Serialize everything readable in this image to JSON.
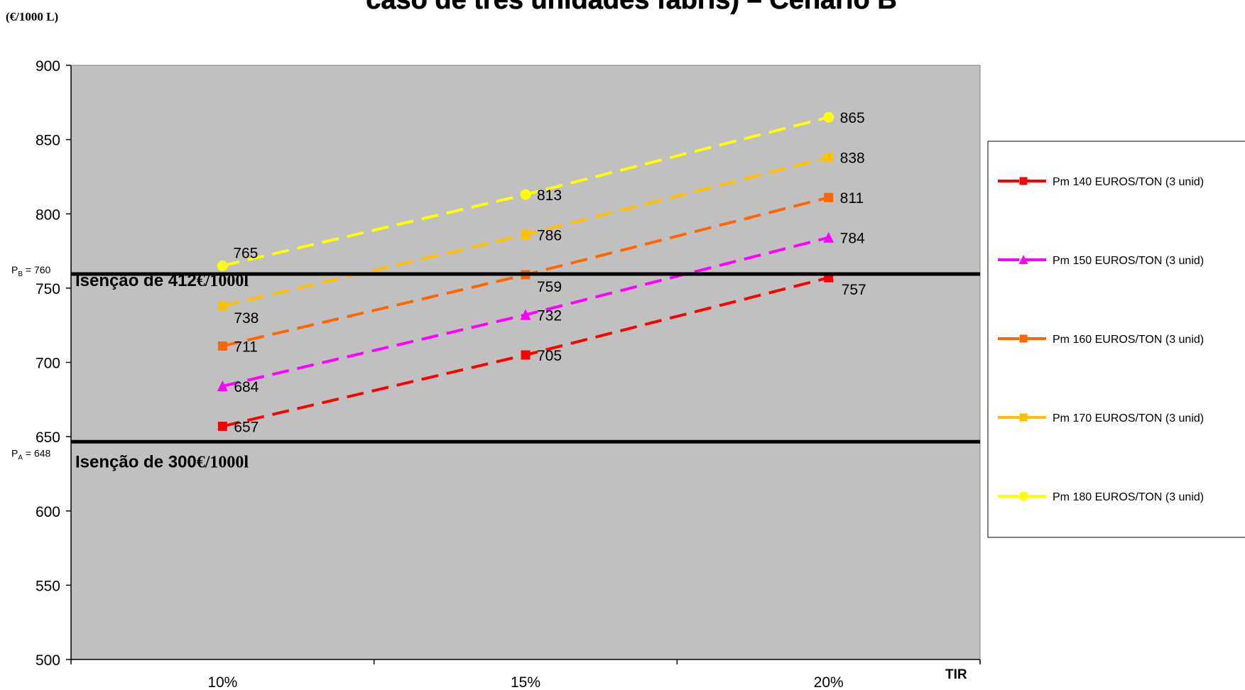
{
  "chart_data": {
    "type": "line",
    "title": "caso de três unidades fabris) – Cenário B",
    "ylabel": "(€/1000 L)",
    "xlabel": "TIR",
    "categories": [
      "10%",
      "15%",
      "20%"
    ],
    "ylim": [
      500,
      900
    ],
    "yticks": [
      500,
      550,
      600,
      650,
      700,
      750,
      800,
      850,
      900
    ],
    "grid": false,
    "plot_background": "#c0c0c0",
    "legend_position": "right",
    "series": [
      {
        "name": "Pm 140 EUROS/TON (3 unid)",
        "values": [
          657,
          705,
          757
        ],
        "color": "#ff0000",
        "marker": "square",
        "labels": [
          "657",
          "705",
          "757"
        ]
      },
      {
        "name": "Pm 150 EUROS/TON (3 unid)",
        "values": [
          684,
          732,
          784
        ],
        "color": "#ff00ff",
        "marker": "triangle",
        "labels": [
          "684",
          "732",
          "784"
        ]
      },
      {
        "name": "Pm 160 EUROS/TON (3 unid)",
        "values": [
          711,
          759,
          811
        ],
        "color": "#ff6600",
        "marker": "square",
        "labels": [
          "711",
          "759",
          "811"
        ]
      },
      {
        "name": "Pm 170 EUROS/TON (3 unid)",
        "values": [
          738,
          786,
          838
        ],
        "color": "#ffc000",
        "marker": "square",
        "labels": [
          "738",
          "786",
          "838"
        ]
      },
      {
        "name": "Pm 180 EUROS/TON (3 unid)",
        "values": [
          765,
          813,
          865
        ],
        "color": "#ffff00",
        "marker": "circle",
        "labels": [
          "765",
          "813",
          "865"
        ]
      }
    ],
    "reference_lines": [
      {
        "value": 760,
        "pre": "P",
        "sub": "B",
        "post": " = 760",
        "text_main": "Isenção de 412",
        "text_unit": "€/1000l"
      },
      {
        "value": 648,
        "pre": "P",
        "sub": "A",
        "post": " = 648",
        "text_main": "Isenção de 300",
        "text_unit": "€/1000l"
      }
    ]
  }
}
